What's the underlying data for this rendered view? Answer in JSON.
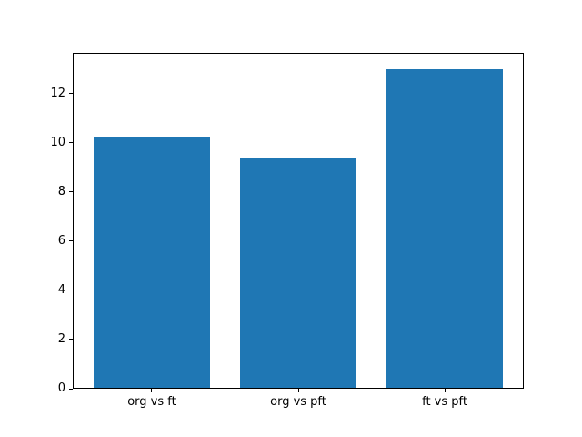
{
  "chart_data": {
    "type": "bar",
    "title": "",
    "xlabel": "",
    "ylabel": "",
    "categories": [
      "org vs ft",
      "org vs pft",
      "ft vs pft"
    ],
    "values": [
      10.2,
      9.35,
      13.0
    ],
    "yticks": [
      0,
      2,
      4,
      6,
      8,
      10,
      12
    ],
    "ylim": [
      0,
      13.65
    ],
    "xlim": [
      -0.54,
      2.54
    ],
    "bar_width": 0.8,
    "bar_color": "#1f77b4",
    "grid": false,
    "legend": "none",
    "background": "#ffffff",
    "spine_color": "#000000",
    "tick_label_color": "#000000"
  }
}
